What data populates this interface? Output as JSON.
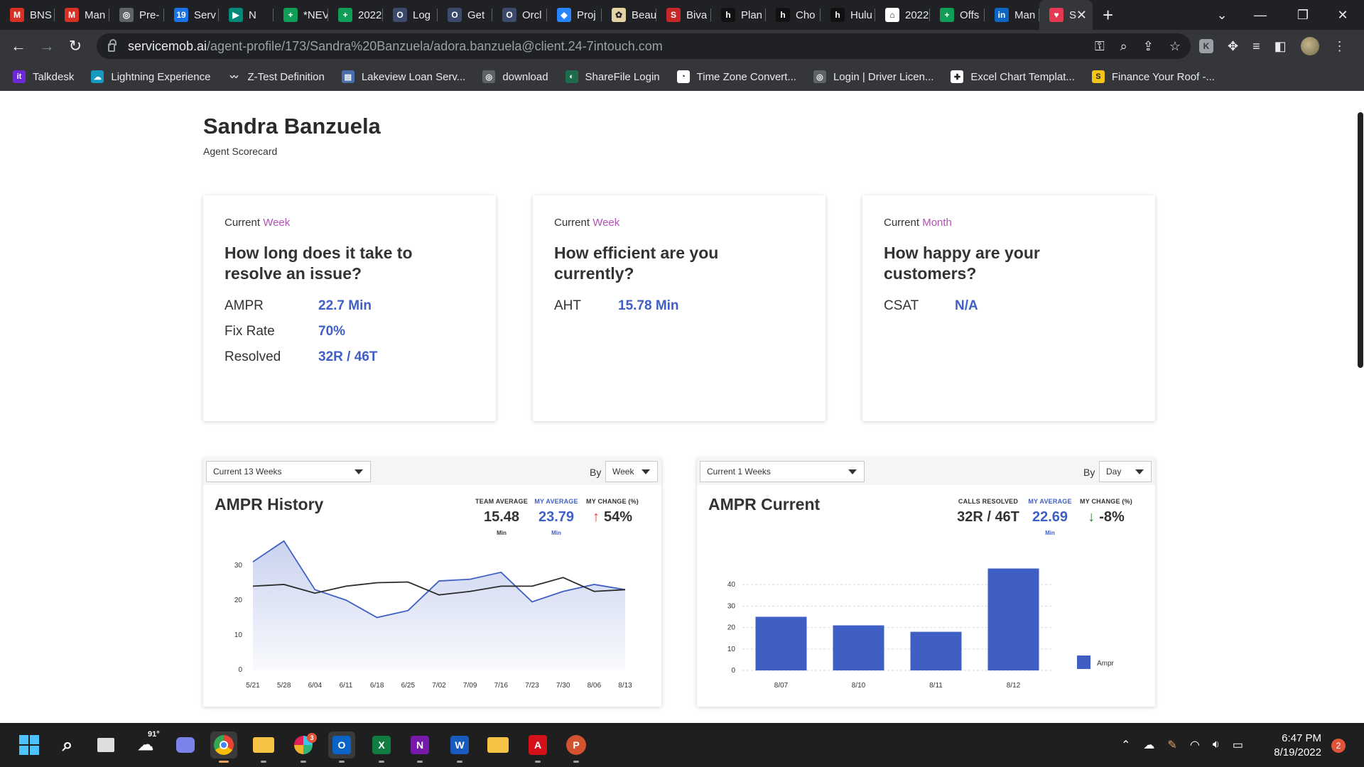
{
  "browser": {
    "tabs": [
      {
        "label": "BNS",
        "icon": "gmail-icon",
        "color": "#d93025",
        "glyph": "M"
      },
      {
        "label": "Man",
        "icon": "gmail-icon",
        "color": "#d93025",
        "glyph": "M"
      },
      {
        "label": "Pre-",
        "icon": "globe-icon",
        "color": "#5f6368",
        "glyph": "◎"
      },
      {
        "label": "Serv",
        "icon": "calendar-icon",
        "color": "#1a73e8",
        "glyph": "19"
      },
      {
        "label": "N",
        "icon": "meet-icon",
        "color": "#00897b",
        "glyph": "▶"
      },
      {
        "label": "*NEV",
        "icon": "sheets-icon",
        "color": "#0f9d58",
        "glyph": "+"
      },
      {
        "label": "2022",
        "icon": "sheets-icon",
        "color": "#0f9d58",
        "glyph": "+"
      },
      {
        "label": "Log",
        "icon": "outlook-icon",
        "color": "#3c4a6b",
        "glyph": "O"
      },
      {
        "label": "Get",
        "icon": "outlook-icon",
        "color": "#3c4a6b",
        "glyph": "O"
      },
      {
        "label": "Orcl",
        "icon": "outlook-icon",
        "color": "#3c4a6b",
        "glyph": "O"
      },
      {
        "label": "Proj",
        "icon": "jira-icon",
        "color": "#2684ff",
        "glyph": "◆"
      },
      {
        "label": "Beau",
        "icon": "pinwheel-icon",
        "color": "#e6d3a3",
        "glyph": "✿"
      },
      {
        "label": "Biva",
        "icon": "s-icon",
        "color": "#c62828",
        "glyph": "S"
      },
      {
        "label": "Plan",
        "icon": "h-icon",
        "color": "#111111",
        "glyph": "h"
      },
      {
        "label": "Cho",
        "icon": "h-icon",
        "color": "#111111",
        "glyph": "h"
      },
      {
        "label": "Hulu",
        "icon": "h-icon",
        "color": "#111111",
        "glyph": "h"
      },
      {
        "label": "2022",
        "icon": "house-icon",
        "color": "#ffffff",
        "glyph": "⌂"
      },
      {
        "label": "Offs",
        "icon": "sheets-icon",
        "color": "#0f9d58",
        "glyph": "+"
      },
      {
        "label": "Man",
        "icon": "linkedin-icon",
        "color": "#0a66c2",
        "glyph": "in"
      },
      {
        "label": "S",
        "icon": "servicemob-icon",
        "color": "#e53951",
        "glyph": "♥"
      }
    ],
    "url_host": "servicemob.ai",
    "url_path": "/agent-profile/173/Sandra%20Banzuela/adora.banzuela@client.24-7intouch.com",
    "bookmarks": [
      {
        "label": "Talkdesk",
        "color": "#6d28d9",
        "glyph": "it"
      },
      {
        "label": "Lightning Experience",
        "color": "#1798c1",
        "glyph": "☁"
      },
      {
        "label": "Z-Test Definition",
        "color": "#35363a",
        "glyph": "〰"
      },
      {
        "label": "Lakeview Loan Serv...",
        "color": "#4a6ea9",
        "glyph": "▤"
      },
      {
        "label": "download",
        "color": "#5f6368",
        "glyph": "◎"
      },
      {
        "label": "ShareFile Login",
        "color": "#1f6b4e",
        "glyph": "◐"
      },
      {
        "label": "Time Zone Convert...",
        "color": "#ffffff",
        "glyph": "◔"
      },
      {
        "label": "Login | Driver Licen...",
        "color": "#5f6368",
        "glyph": "◎"
      },
      {
        "label": "Excel Chart Templat...",
        "color": "#ffffff",
        "glyph": "✚"
      },
      {
        "label": "Finance Your Roof -...",
        "color": "#f5c518",
        "glyph": "S"
      }
    ]
  },
  "profile": {
    "name": "Sandra Banzuela",
    "subtitle": "Agent Scorecard"
  },
  "cards": [
    {
      "period_prefix": "Current",
      "period_unit": "Week",
      "question": "How long does it take to resolve an issue?",
      "metrics": [
        {
          "label": "AMPR",
          "value": "22.7 Min"
        },
        {
          "label": "Fix Rate",
          "value": "70%"
        },
        {
          "label": "Resolved",
          "value": "32R / 46T"
        }
      ]
    },
    {
      "period_prefix": "Current",
      "period_unit": "Week",
      "question": "How efficient are you currently?",
      "metrics": [
        {
          "label": "AHT",
          "value": "15.78 Min"
        }
      ]
    },
    {
      "period_prefix": "Current",
      "period_unit": "Month",
      "question": "How happy are your customers?",
      "metrics": [
        {
          "label": "CSAT",
          "value": "N/A"
        }
      ]
    }
  ],
  "history_panel": {
    "range_select": "Current 13 Weeks",
    "by_label": "By",
    "by_select": "Week",
    "title": "AMPR History",
    "stats": [
      {
        "caption": "TEAM AVERAGE",
        "value": "15.48",
        "unit": "Min"
      },
      {
        "caption": "MY AVERAGE",
        "value": "23.79",
        "unit": "Min"
      },
      {
        "caption": "MY CHANGE (%)",
        "value": "54%",
        "direction": "up"
      }
    ]
  },
  "current_panel": {
    "range_select": "Current 1 Weeks",
    "by_label": "By",
    "by_select": "Day",
    "title": "AMPR Current",
    "stats": [
      {
        "caption": "CALLS RESOLVED",
        "value": "32R / 46T",
        "unit": ""
      },
      {
        "caption": "MY AVERAGE",
        "value": "22.69",
        "unit": "Min"
      },
      {
        "caption": "MY CHANGE (%)",
        "value": "-8%",
        "direction": "down"
      }
    ]
  },
  "chart_data": [
    {
      "type": "area",
      "title": "AMPR History",
      "categories": [
        "5/21",
        "5/28",
        "6/04",
        "6/11",
        "6/18",
        "6/25",
        "7/02",
        "7/09",
        "7/16",
        "7/23",
        "7/30",
        "8/06",
        "8/13"
      ],
      "ylim": [
        0,
        40
      ],
      "yticks": [
        0,
        10,
        20,
        30
      ],
      "grid": false,
      "series": [
        {
          "values": [
            31,
            37,
            23,
            20,
            15,
            17,
            25.5,
            26,
            28,
            19.5,
            22.5,
            24.5,
            23
          ],
          "color": "#3f5fc5",
          "fill": true
        },
        {
          "values": [
            24,
            24.5,
            22,
            24,
            25,
            25.2,
            21.5,
            22.5,
            24,
            24,
            26.5,
            22.5,
            23
          ],
          "color": "#2b2b2b",
          "fill": false
        }
      ]
    },
    {
      "type": "bar",
      "title": "AMPR Current",
      "categories": [
        "8/07",
        "8/10",
        "8/11",
        "8/12"
      ],
      "ylim": [
        0,
        48
      ],
      "yticks": [
        0,
        10,
        20,
        30,
        40
      ],
      "grid": true,
      "series": [
        {
          "name": "Ampr",
          "values": [
            25,
            21,
            18,
            47.5
          ],
          "color": "#3f5fc5"
        }
      ],
      "legend": "right"
    }
  ],
  "taskbar": {
    "weather_temp": "91°",
    "time": "6:47 PM",
    "date": "8/19/2022",
    "notification_count": "2",
    "slack_badge": "3"
  }
}
